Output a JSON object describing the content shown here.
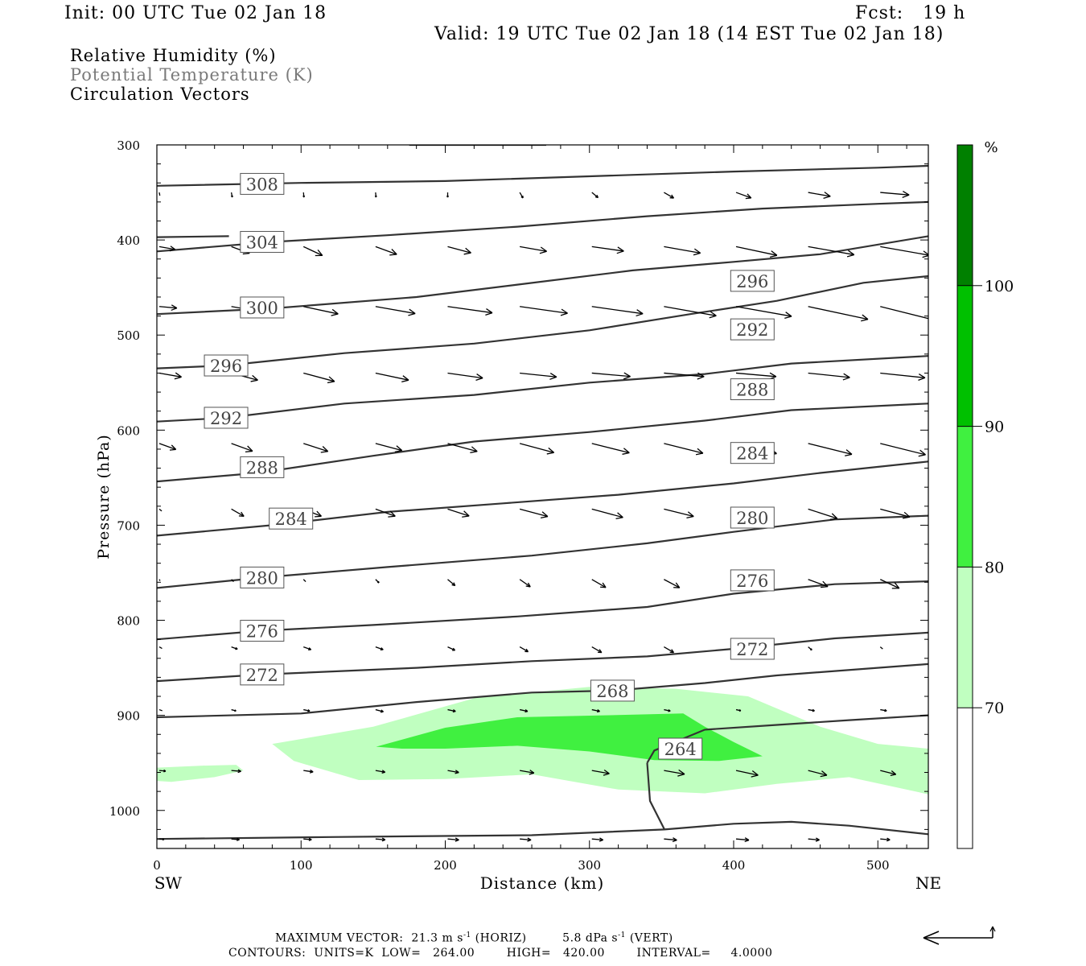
{
  "header": {
    "init": "Init: 00 UTC Tue 02 Jan 18",
    "fcst": "Fcst:   19 h",
    "valid": "Valid: 19 UTC Tue 02 Jan 18 (14 EST Tue 02 Jan 18)",
    "fields": [
      {
        "label": "Relative Humidity (%)",
        "color": "#000000"
      },
      {
        "label": "Potential Temperature (K)",
        "color": "#7a7a7a"
      },
      {
        "label": "Circulation Vectors",
        "color": "#000000"
      }
    ]
  },
  "chart_data": {
    "type": "cross-section",
    "xlabel": "Distance (km)",
    "ylabel": "Pressure (hPa)",
    "x_ticks": [
      0,
      100,
      200,
      300,
      400,
      500
    ],
    "y_ticks": [
      300,
      400,
      500,
      600,
      700,
      800,
      900,
      1000
    ],
    "xlim": [
      0,
      535
    ],
    "ylim": [
      1040,
      300
    ],
    "x_end_labels": {
      "left": "SW",
      "right": "NE"
    },
    "colorbar": {
      "unit": "%",
      "levels": [
        70,
        80,
        90,
        100
      ],
      "colors": [
        "#ffffff",
        "#c0ffc0",
        "#40f040",
        "#00c000",
        "#008000"
      ]
    },
    "rh_regions": [
      {
        "level": 70,
        "color": "#c0ffc0",
        "points": [
          [
            80,
            930
          ],
          [
            150,
            912
          ],
          [
            220,
            882
          ],
          [
            300,
            870
          ],
          [
            360,
            872
          ],
          [
            410,
            880
          ],
          [
            460,
            912
          ],
          [
            500,
            930
          ],
          [
            535,
            935
          ],
          [
            535,
            983
          ],
          [
            480,
            965
          ],
          [
            430,
            972
          ],
          [
            380,
            982
          ],
          [
            320,
            978
          ],
          [
            260,
            962
          ],
          [
            200,
            967
          ],
          [
            140,
            968
          ],
          [
            95,
            948
          ]
        ]
      },
      {
        "level": 70,
        "color": "#c0ffc0",
        "points": [
          [
            0,
            955
          ],
          [
            30,
            953
          ],
          [
            55,
            952
          ],
          [
            60,
            958
          ],
          [
            40,
            965
          ],
          [
            10,
            970
          ],
          [
            0,
            969
          ]
        ]
      },
      {
        "level": 80,
        "color": "#40f040",
        "points": [
          [
            152,
            933
          ],
          [
            200,
            913
          ],
          [
            250,
            902
          ],
          [
            310,
            900
          ],
          [
            365,
            898
          ],
          [
            380,
            912
          ],
          [
            400,
            928
          ],
          [
            420,
            943
          ],
          [
            390,
            948
          ],
          [
            345,
            947
          ],
          [
            300,
            938
          ],
          [
            250,
            932
          ],
          [
            200,
            935
          ],
          [
            170,
            935
          ]
        ]
      }
    ],
    "theta_contours": [
      {
        "label": "308",
        "points": [
          [
            0,
            343
          ],
          [
            100,
            340
          ],
          [
            200,
            338
          ],
          [
            300,
            333
          ],
          [
            400,
            328
          ],
          [
            500,
            324
          ],
          [
            535,
            322
          ]
        ],
        "label_at": [
          73,
          341
        ]
      },
      {
        "label": "",
        "points": [
          [
            0,
            397
          ],
          [
            50,
            396
          ]
        ]
      },
      {
        "label": "304",
        "points": [
          [
            0,
            412
          ],
          [
            80,
            402
          ],
          [
            160,
            395
          ],
          [
            250,
            386
          ],
          [
            340,
            375
          ],
          [
            420,
            367
          ],
          [
            500,
            362
          ],
          [
            535,
            360
          ]
        ],
        "label_at": [
          73,
          402
        ]
      },
      {
        "label": "300",
        "points": [
          [
            0,
            478
          ],
          [
            80,
            472
          ],
          [
            180,
            460
          ],
          [
            250,
            447
          ],
          [
            330,
            432
          ],
          [
            400,
            423
          ],
          [
            460,
            415
          ],
          [
            535,
            396
          ]
        ],
        "label_at": [
          73,
          471
        ]
      },
      {
        "label": "296",
        "points": [
          [
            0,
            535
          ],
          [
            48,
            532
          ],
          [
            130,
            519
          ],
          [
            220,
            509
          ],
          [
            300,
            495
          ],
          [
            370,
            478
          ],
          [
            430,
            464
          ],
          [
            490,
            445
          ],
          [
            535,
            438
          ]
        ],
        "label_at": [
          48,
          532
        ],
        "label2": "296",
        "label2_at": [
          413,
          443
        ]
      },
      {
        "label": "292",
        "points": [
          [
            0,
            591
          ],
          [
            48,
            587
          ],
          [
            130,
            572
          ],
          [
            220,
            563
          ],
          [
            300,
            550
          ],
          [
            380,
            541
          ],
          [
            440,
            530
          ],
          [
            535,
            522
          ]
        ],
        "label_at": [
          48,
          587
        ],
        "label2": "292",
        "label2_at": [
          413,
          494
        ]
      },
      {
        "label": "288",
        "points": [
          [
            0,
            654
          ],
          [
            70,
            645
          ],
          [
            150,
            627
          ],
          [
            220,
            612
          ],
          [
            300,
            602
          ],
          [
            380,
            590
          ],
          [
            440,
            579
          ],
          [
            535,
            572
          ]
        ],
        "label_at": [
          73,
          639
        ],
        "label2": "288",
        "label2_at": [
          413,
          557
        ]
      },
      {
        "label": "284",
        "points": [
          [
            0,
            711
          ],
          [
            80,
            700
          ],
          [
            160,
            686
          ],
          [
            240,
            677
          ],
          [
            320,
            668
          ],
          [
            400,
            656
          ],
          [
            460,
            645
          ],
          [
            535,
            633
          ]
        ],
        "label_at": [
          93,
          693
        ],
        "label2": "284",
        "label2_at": [
          413,
          624
        ]
      },
      {
        "label": "280",
        "points": [
          [
            0,
            766
          ],
          [
            73,
            755
          ],
          [
            160,
            744
          ],
          [
            260,
            732
          ],
          [
            340,
            719
          ],
          [
            400,
            707
          ],
          [
            470,
            694
          ],
          [
            535,
            690
          ]
        ],
        "label_at": [
          73,
          755
        ],
        "label2": "280",
        "label2_at": [
          413,
          692
        ]
      },
      {
        "label": "276",
        "points": [
          [
            0,
            820
          ],
          [
            73,
            811
          ],
          [
            150,
            805
          ],
          [
            250,
            796
          ],
          [
            340,
            786
          ],
          [
            400,
            772
          ],
          [
            470,
            762
          ],
          [
            535,
            759
          ]
        ],
        "label_at": [
          73,
          811
        ],
        "label2": "276",
        "label2_at": [
          413,
          758
        ]
      },
      {
        "label": "272",
        "points": [
          [
            0,
            864
          ],
          [
            73,
            857
          ],
          [
            180,
            850
          ],
          [
            260,
            843
          ],
          [
            340,
            838
          ],
          [
            400,
            830
          ],
          [
            470,
            819
          ],
          [
            535,
            813
          ]
        ],
        "label_at": [
          73,
          857
        ],
        "label2": "272",
        "label2_at": [
          413,
          830
        ]
      },
      {
        "label": "268",
        "points": [
          [
            0,
            902
          ],
          [
            100,
            898
          ],
          [
            180,
            886
          ],
          [
            260,
            876
          ],
          [
            316,
            874
          ],
          [
            380,
            866
          ],
          [
            430,
            858
          ],
          [
            535,
            846
          ]
        ],
        "label_at": [
          316,
          874
        ]
      },
      {
        "label": "264",
        "points": [
          [
            340,
            950
          ],
          [
            345,
            937
          ],
          [
            380,
            915
          ],
          [
            430,
            910
          ],
          [
            480,
            905
          ],
          [
            535,
            900
          ]
        ],
        "label_at": [
          363,
          935
        ]
      },
      {
        "label": "",
        "points": [
          [
            340,
            950
          ],
          [
            342,
            990
          ],
          [
            352,
            1020
          ]
        ]
      },
      {
        "label": "",
        "points": [
          [
            0,
            1030
          ],
          [
            120,
            1028
          ],
          [
            260,
            1026
          ],
          [
            352,
            1020
          ],
          [
            400,
            1014
          ],
          [
            440,
            1012
          ],
          [
            480,
            1016
          ],
          [
            535,
            1025
          ]
        ]
      },
      {
        "label": "",
        "points": [
          [
            175,
            300
          ],
          [
            270,
            300
          ]
        ]
      }
    ],
    "vectors": {
      "rows": [
        350,
        407,
        470,
        540,
        614,
        683,
        757,
        828,
        894,
        958,
        1030
      ],
      "x_positions": [
        0,
        50,
        100,
        150,
        200,
        250,
        300,
        350,
        400,
        450,
        500
      ],
      "lengths": [
        [
          4,
          6,
          6,
          6,
          6,
          8,
          10,
          14,
          20,
          28,
          36
        ],
        [
          20,
          24,
          26,
          28,
          30,
          34,
          40,
          46,
          52,
          58,
          62
        ],
        [
          22,
          36,
          44,
          50,
          56,
          60,
          64,
          66,
          70,
          76,
          82
        ],
        [
          28,
          34,
          40,
          42,
          44,
          46,
          48,
          50,
          50,
          52,
          56
        ],
        [
          22,
          28,
          32,
          34,
          38,
          44,
          48,
          50,
          52,
          56,
          58
        ],
        [
          4,
          18,
          24,
          26,
          28,
          36,
          40,
          38,
          40,
          38,
          38
        ],
        [
          2,
          4,
          4,
          6,
          12,
          16,
          20,
          22,
          24,
          26,
          26
        ],
        [
          4,
          8,
          10,
          10,
          10,
          12,
          14,
          14,
          10,
          6,
          4
        ],
        [
          4,
          6,
          8,
          10,
          10,
          10,
          10,
          8,
          6,
          8,
          8
        ],
        [
          8,
          12,
          12,
          12,
          14,
          18,
          22,
          26,
          28,
          24,
          20
        ],
        [
          6,
          10,
          10,
          12,
          14,
          14,
          14,
          16,
          16,
          14,
          12
        ]
      ],
      "angles": [
        [
          80,
          80,
          85,
          85,
          90,
          60,
          40,
          30,
          20,
          10,
          5
        ],
        [
          10,
          20,
          25,
          20,
          15,
          10,
          8,
          10,
          12,
          10,
          10
        ],
        [
          5,
          10,
          12,
          10,
          8,
          8,
          8,
          10,
          10,
          12,
          14
        ],
        [
          10,
          15,
          15,
          12,
          8,
          6,
          5,
          5,
          5,
          6,
          6
        ],
        [
          20,
          20,
          18,
          15,
          15,
          15,
          14,
          14,
          14,
          14,
          14
        ],
        [
          40,
          30,
          22,
          20,
          18,
          15,
          15,
          14,
          14,
          18,
          15
        ],
        [
          60,
          45,
          45,
          45,
          40,
          35,
          30,
          28,
          20,
          20,
          25
        ],
        [
          30,
          20,
          20,
          20,
          25,
          30,
          30,
          30,
          35,
          40,
          40
        ],
        [
          20,
          15,
          12,
          15,
          12,
          12,
          12,
          12,
          12,
          10,
          10
        ],
        [
          5,
          5,
          8,
          10,
          10,
          10,
          10,
          10,
          12,
          14,
          14
        ],
        [
          5,
          5,
          5,
          5,
          5,
          5,
          5,
          5,
          5,
          5,
          5
        ]
      ]
    }
  },
  "axes": {
    "xlabel": "Distance (km)",
    "ylabel": "Pressure (hPa)",
    "sw": "SW",
    "ne": "NE",
    "cb_unit": "%"
  },
  "footer": {
    "max_vector_label": "MAXIMUM VECTOR:",
    "horiz_value": "21.3",
    "horiz_unit_pre": "m s",
    "horiz_exp": "-1",
    "horiz_tag": "(HORIZ)",
    "vert_value": "5.8",
    "vert_unit_pre": "dPa s",
    "vert_exp": "-1",
    "vert_tag": "(VERT)",
    "contours_line": "CONTOURS:  UNITS=K  LOW=   264.00        HIGH=   420.00        INTERVAL=     4.0000"
  }
}
